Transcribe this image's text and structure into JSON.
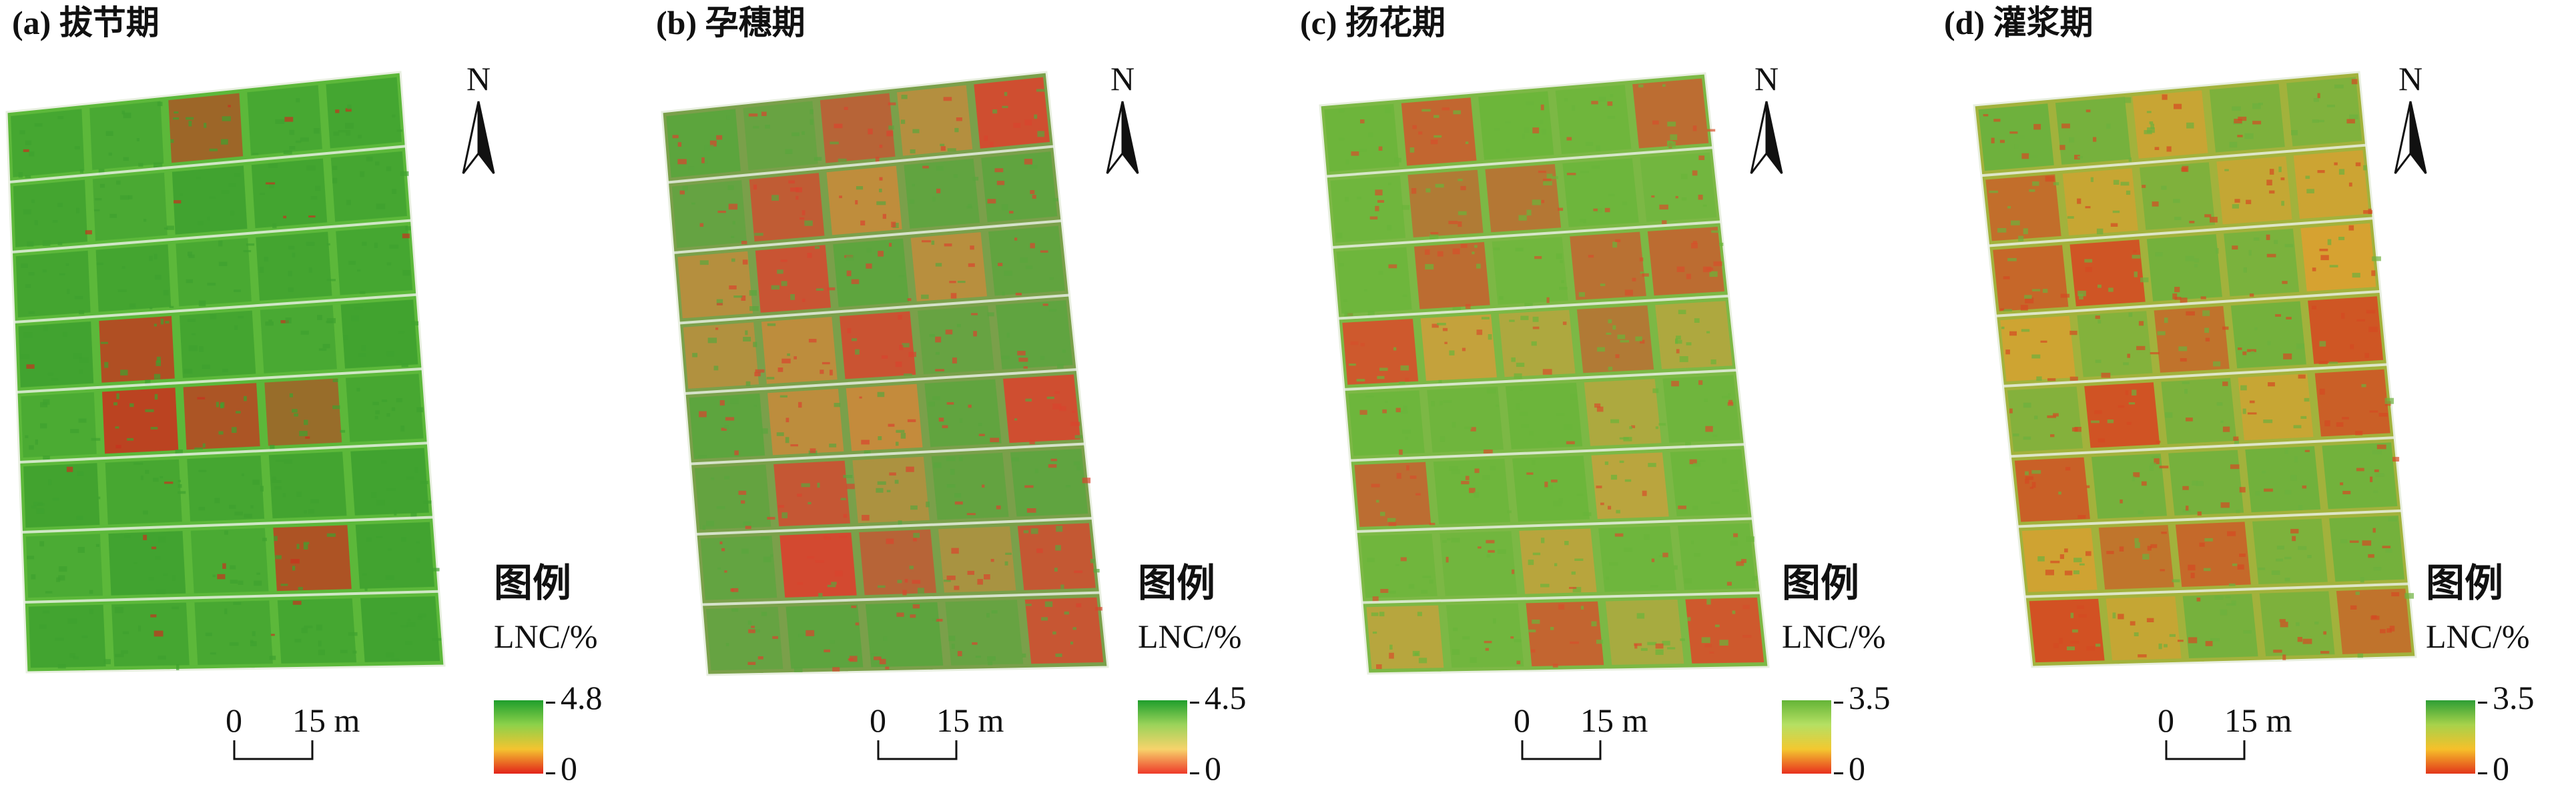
{
  "panels": [
    {
      "title": "(a) 拔节期",
      "legend": {
        "title": "图例",
        "unit": "LNC/%",
        "max": "4.8",
        "min": "0"
      },
      "scale": {
        "zero": "0",
        "length": "15 m"
      },
      "north": "N",
      "colors": {
        "base": "#5cb83a",
        "high": "#3fa12f",
        "low": "#c8321e",
        "mid": "#d8a23a"
      },
      "ramp": [
        "#1f9e2c",
        "#8dd14a",
        "#f4c430",
        "#e2231a"
      ],
      "red_level": 0.06
    },
    {
      "title": "(b) 孕穗期",
      "legend": {
        "title": "图例",
        "unit": "LNC/%",
        "max": "4.5",
        "min": "0"
      },
      "scale": {
        "zero": "0",
        "length": "15 m"
      },
      "north": "N",
      "colors": {
        "base": "#7aa04a",
        "high": "#5aa53d",
        "low": "#d8452e",
        "mid": "#c98a3b"
      },
      "ramp": [
        "#1f9e2c",
        "#9bd35a",
        "#f7d36b",
        "#ee3a2a"
      ],
      "red_level": 0.5
    },
    {
      "title": "(c) 扬花期",
      "legend": {
        "title": "图例",
        "unit": "LNC/%",
        "max": "3.5",
        "min": "0"
      },
      "scale": {
        "zero": "0",
        "length": "15 m"
      },
      "north": "N",
      "colors": {
        "base": "#7cb845",
        "high": "#6ab53a",
        "low": "#d5502b",
        "mid": "#c9a03c"
      },
      "ramp": [
        "#64b437",
        "#b5e063",
        "#f3c830",
        "#e8301e"
      ],
      "red_level": 0.35
    },
    {
      "title": "(d) 灌浆期",
      "legend": {
        "title": "图例",
        "unit": "LNC/%",
        "max": "3.5",
        "min": "0"
      },
      "scale": {
        "zero": "0",
        "length": "15 m"
      },
      "north": "N",
      "colors": {
        "base": "#a2b23c",
        "high": "#6cb13d",
        "low": "#d44a22",
        "mid": "#d9a030"
      },
      "ramp": [
        "#2e9e35",
        "#a7d24b",
        "#f6c02a",
        "#e2361a"
      ],
      "red_level": 0.55
    }
  ]
}
